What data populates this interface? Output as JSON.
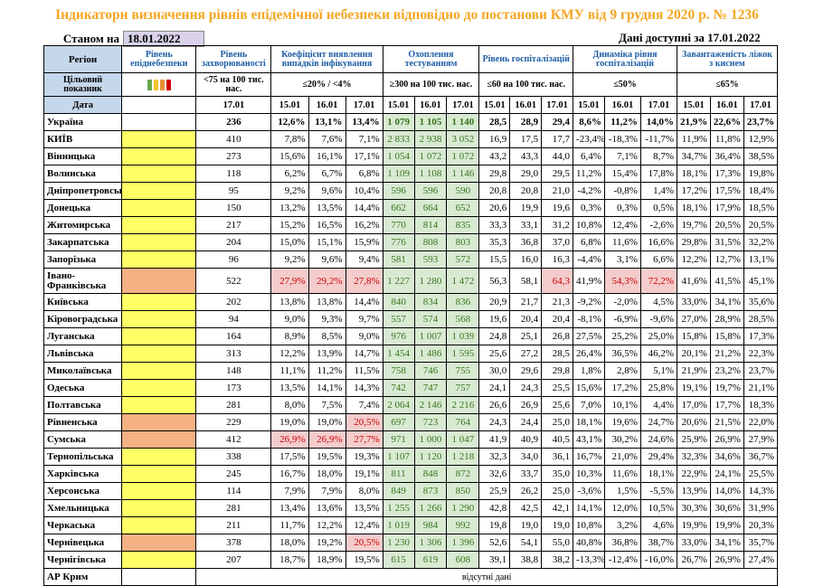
{
  "title": "Індикатори визначення рівнів епідемічної небезпеки відповідно до постанови КМУ від 9 грудня 2020 р. № 1236",
  "as_of_label": "Станом на",
  "as_of_date": "18.01.2022",
  "available": "Дані доступні за  17.01.2022",
  "headers": {
    "region": "Регіон",
    "level": "Рівень епіднебезпеки",
    "incidence": "Рівень захворюваності",
    "detection": "Коефіцієнт виявлення випадків інфікування",
    "testing": "Охоплення тестуванням",
    "hospital": "Рівень госпіталізацій",
    "dynamics": "Динаміка рівня госпіталізацій",
    "beds": "Завантаженість ліжок з киснем"
  },
  "target": {
    "label": "Цільовий показник",
    "incidence": "<75 на 100 тис. нас.",
    "detection": "≤20% / <4%",
    "testing": "≥300 на 100 тис. нас.",
    "hospital": "≤60 на 100 тис. нас.",
    "dynamics": "≤50%",
    "beds": "≤65%"
  },
  "date_label": "Дата",
  "dates": {
    "incidence": "17.01",
    "d1": "15.01",
    "d2": "16.01",
    "d3": "17.01"
  },
  "colors": {
    "yellow": "#ffff66",
    "orange": "#f4b183",
    "swatch_green": "#6aa84f",
    "swatch_yellow": "#f1c232",
    "swatch_orange": "#e69138",
    "swatch_red": "#cc0000"
  },
  "rows": [
    {
      "name": "Україна",
      "lvl": "",
      "inc": "236",
      "det": [
        "12,6%",
        "13,1%",
        "13,4%"
      ],
      "tst": [
        "1 079",
        "1 105",
        "1 140"
      ],
      "hosp": [
        "28,5",
        "28,9",
        "29,4"
      ],
      "dyn": [
        "8,6%",
        "11,2%",
        "14,0%"
      ],
      "bed": [
        "21,9%",
        "22,6%",
        "23,7%"
      ]
    },
    {
      "name": "КИЇВ",
      "lvl": "y",
      "inc": "410",
      "det": [
        "7,8%",
        "7,6%",
        "7,1%"
      ],
      "tst": [
        "2 833",
        "2 938",
        "3 052"
      ],
      "hosp": [
        "16,9",
        "17,5",
        "17,7"
      ],
      "dyn": [
        "-23,4%",
        "-18,3%",
        "-11,7%"
      ],
      "bed": [
        "11,9%",
        "11,8%",
        "12,9%"
      ]
    },
    {
      "name": "Вінницька",
      "lvl": "y",
      "inc": "273",
      "det": [
        "15,6%",
        "16,1%",
        "17,1%"
      ],
      "tst": [
        "1 054",
        "1 072",
        "1 072"
      ],
      "hosp": [
        "43,2",
        "43,3",
        "44,0"
      ],
      "dyn": [
        "6,4%",
        "7,1%",
        "8,7%"
      ],
      "bed": [
        "34,7%",
        "36,4%",
        "38,5%"
      ]
    },
    {
      "name": "Волинська",
      "lvl": "y",
      "inc": "118",
      "det": [
        "6,2%",
        "6,7%",
        "6,8%"
      ],
      "tst": [
        "1 109",
        "1 108",
        "1 146"
      ],
      "hosp": [
        "29,8",
        "29,0",
        "29,5"
      ],
      "dyn": [
        "11,2%",
        "15,4%",
        "17,8%"
      ],
      "bed": [
        "18,1%",
        "17,3%",
        "19,8%"
      ]
    },
    {
      "name": "Дніпропетровська",
      "lvl": "y",
      "inc": "95",
      "det": [
        "9,2%",
        "9,6%",
        "10,4%"
      ],
      "tst": [
        "596",
        "596",
        "590"
      ],
      "hosp": [
        "20,8",
        "20,8",
        "21,0"
      ],
      "dyn": [
        "-4,2%",
        "-0,8%",
        "1,4%"
      ],
      "bed": [
        "17,2%",
        "17,5%",
        "18,4%"
      ]
    },
    {
      "name": "Донецька",
      "lvl": "y",
      "inc": "150",
      "det": [
        "13,2%",
        "13,5%",
        "14,4%"
      ],
      "tst": [
        "662",
        "664",
        "652"
      ],
      "hosp": [
        "20,6",
        "19,9",
        "19,6"
      ],
      "dyn": [
        "0,3%",
        "0,3%",
        "0,5%"
      ],
      "bed": [
        "18,1%",
        "17,9%",
        "18,5%"
      ]
    },
    {
      "name": "Житомирська",
      "lvl": "y",
      "inc": "217",
      "det": [
        "15,2%",
        "16,5%",
        "16,2%"
      ],
      "tst": [
        "770",
        "814",
        "835"
      ],
      "hosp": [
        "33,3",
        "33,1",
        "31,2"
      ],
      "dyn": [
        "10,8%",
        "12,4%",
        "-2,6%"
      ],
      "bed": [
        "19,7%",
        "20,5%",
        "20,5%"
      ]
    },
    {
      "name": "Закарпатська",
      "lvl": "y",
      "inc": "204",
      "det": [
        "15,0%",
        "15,1%",
        "15,9%"
      ],
      "tst": [
        "776",
        "808",
        "803"
      ],
      "hosp": [
        "35,3",
        "36,8",
        "37,0"
      ],
      "dyn": [
        "6,8%",
        "11,6%",
        "16,6%"
      ],
      "bed": [
        "29,8%",
        "31,5%",
        "32,2%"
      ]
    },
    {
      "name": "Запорізька",
      "lvl": "y",
      "inc": "96",
      "det": [
        "9,2%",
        "9,6%",
        "9,4%"
      ],
      "tst": [
        "581",
        "593",
        "572"
      ],
      "hosp": [
        "15,5",
        "16,0",
        "16,3"
      ],
      "dyn": [
        "-4,4%",
        "3,1%",
        "6,6%"
      ],
      "bed": [
        "12,2%",
        "12,7%",
        "13,1%"
      ]
    },
    {
      "name": "Івано-Франківська",
      "lvl": "o",
      "inc": "522",
      "det": [
        "27,9%",
        "29,2%",
        "27,8%"
      ],
      "tst": [
        "1 227",
        "1 280",
        "1 472"
      ],
      "hosp": [
        "56,3",
        "58,1",
        "64,3"
      ],
      "dyn": [
        "41,9%",
        "54,3%",
        "72,2%"
      ],
      "bed": [
        "41,6%",
        "41,5%",
        "45,1%"
      ],
      "red_det": true,
      "red_hosp3": true,
      "red_dyn23": true
    },
    {
      "name": "Київська",
      "lvl": "y",
      "inc": "202",
      "det": [
        "13,8%",
        "13,8%",
        "14,4%"
      ],
      "tst": [
        "840",
        "834",
        "836"
      ],
      "hosp": [
        "20,9",
        "21,7",
        "21,3"
      ],
      "dyn": [
        "-9,2%",
        "-2,0%",
        "4,5%"
      ],
      "bed": [
        "33,0%",
        "34,1%",
        "35,6%"
      ]
    },
    {
      "name": "Кіровоградська",
      "lvl": "y",
      "inc": "94",
      "det": [
        "9,0%",
        "9,3%",
        "9,7%"
      ],
      "tst": [
        "557",
        "574",
        "568"
      ],
      "hosp": [
        "19,6",
        "20,4",
        "20,4"
      ],
      "dyn": [
        "-8,1%",
        "-6,9%",
        "-9,6%"
      ],
      "bed": [
        "27,0%",
        "28,9%",
        "28,5%"
      ]
    },
    {
      "name": "Луганська",
      "lvl": "y",
      "inc": "164",
      "det": [
        "8,9%",
        "8,5%",
        "9,0%"
      ],
      "tst": [
        "976",
        "1 007",
        "1 039"
      ],
      "hosp": [
        "24,8",
        "25,1",
        "26,8"
      ],
      "dyn": [
        "27,5%",
        "25,2%",
        "25,0%"
      ],
      "bed": [
        "15,8%",
        "15,8%",
        "17,3%"
      ]
    },
    {
      "name": "Львівська",
      "lvl": "y",
      "inc": "313",
      "det": [
        "12,2%",
        "13,9%",
        "14,7%"
      ],
      "tst": [
        "1 454",
        "1 486",
        "1 595"
      ],
      "hosp": [
        "25,6",
        "27,2",
        "28,5"
      ],
      "dyn": [
        "26,4%",
        "36,5%",
        "46,2%"
      ],
      "bed": [
        "20,1%",
        "21,2%",
        "22,3%"
      ]
    },
    {
      "name": "Миколаївська",
      "lvl": "y",
      "inc": "148",
      "det": [
        "11,1%",
        "11,2%",
        "11,5%"
      ],
      "tst": [
        "758",
        "746",
        "755"
      ],
      "hosp": [
        "30,0",
        "29,6",
        "29,8"
      ],
      "dyn": [
        "1,8%",
        "2,8%",
        "5,1%"
      ],
      "bed": [
        "21,9%",
        "23,2%",
        "23,7%"
      ]
    },
    {
      "name": "Одеська",
      "lvl": "y",
      "inc": "173",
      "det": [
        "13,5%",
        "14,1%",
        "14,3%"
      ],
      "tst": [
        "742",
        "747",
        "757"
      ],
      "hosp": [
        "24,1",
        "24,3",
        "25,5"
      ],
      "dyn": [
        "15,6%",
        "17,2%",
        "25,8%"
      ],
      "bed": [
        "19,1%",
        "19,7%",
        "21,1%"
      ]
    },
    {
      "name": "Полтавська",
      "lvl": "y",
      "inc": "281",
      "det": [
        "8,0%",
        "7,5%",
        "7,4%"
      ],
      "tst": [
        "2 064",
        "2 146",
        "2 216"
      ],
      "hosp": [
        "26,6",
        "26,9",
        "25,6"
      ],
      "dyn": [
        "7,0%",
        "10,1%",
        "4,4%"
      ],
      "bed": [
        "17,0%",
        "17,7%",
        "18,3%"
      ]
    },
    {
      "name": "Рівненська",
      "lvl": "o",
      "inc": "229",
      "det": [
        "19,0%",
        "19,0%",
        "20,5%"
      ],
      "tst": [
        "697",
        "723",
        "764"
      ],
      "hosp": [
        "24,3",
        "24,4",
        "25,0"
      ],
      "dyn": [
        "18,1%",
        "19,6%",
        "24,7%"
      ],
      "bed": [
        "20,6%",
        "21,5%",
        "22,0%"
      ],
      "red_det3": true
    },
    {
      "name": "Сумська",
      "lvl": "o",
      "inc": "412",
      "det": [
        "26,9%",
        "26,9%",
        "27,7%"
      ],
      "tst": [
        "971",
        "1 000",
        "1 047"
      ],
      "hosp": [
        "41,9",
        "40,9",
        "40,5"
      ],
      "dyn": [
        "43,1%",
        "30,2%",
        "24,6%"
      ],
      "bed": [
        "25,9%",
        "26,9%",
        "27,9%"
      ],
      "red_det": true
    },
    {
      "name": "Тернопільська",
      "lvl": "y",
      "inc": "338",
      "det": [
        "17,5%",
        "19,5%",
        "19,3%"
      ],
      "tst": [
        "1 107",
        "1 120",
        "1 218"
      ],
      "hosp": [
        "32,3",
        "34,0",
        "36,1"
      ],
      "dyn": [
        "16,7%",
        "21,0%",
        "29,4%"
      ],
      "bed": [
        "32,3%",
        "34,6%",
        "36,7%"
      ]
    },
    {
      "name": "Харківська",
      "lvl": "y",
      "inc": "245",
      "det": [
        "16,7%",
        "18,0%",
        "19,1%"
      ],
      "tst": [
        "811",
        "848",
        "872"
      ],
      "hosp": [
        "32,6",
        "33,7",
        "35,0"
      ],
      "dyn": [
        "10,3%",
        "11,6%",
        "18,1%"
      ],
      "bed": [
        "22,9%",
        "24,1%",
        "25,5%"
      ]
    },
    {
      "name": "Херсонська",
      "lvl": "y",
      "inc": "114",
      "det": [
        "7,9%",
        "7,9%",
        "8,0%"
      ],
      "tst": [
        "849",
        "873",
        "850"
      ],
      "hosp": [
        "25,9",
        "26,2",
        "25,0"
      ],
      "dyn": [
        "-3,6%",
        "1,5%",
        "-5,5%"
      ],
      "bed": [
        "13,9%",
        "14,0%",
        "14,3%"
      ]
    },
    {
      "name": "Хмельницька",
      "lvl": "y",
      "inc": "281",
      "det": [
        "13,4%",
        "13,6%",
        "13,5%"
      ],
      "tst": [
        "1 255",
        "1 266",
        "1 290"
      ],
      "hosp": [
        "42,8",
        "42,5",
        "42,1"
      ],
      "dyn": [
        "14,1%",
        "12,0%",
        "10,5%"
      ],
      "bed": [
        "30,3%",
        "30,6%",
        "31,9%"
      ]
    },
    {
      "name": "Черкаська",
      "lvl": "y",
      "inc": "211",
      "det": [
        "11,7%",
        "12,2%",
        "12,4%"
      ],
      "tst": [
        "1 019",
        "984",
        "992"
      ],
      "hosp": [
        "19,8",
        "19,0",
        "19,0"
      ],
      "dyn": [
        "10,8%",
        "3,2%",
        "4,6%"
      ],
      "bed": [
        "19,9%",
        "19,9%",
        "20,3%"
      ]
    },
    {
      "name": "Чернівецька",
      "lvl": "o",
      "inc": "378",
      "det": [
        "18,0%",
        "19,2%",
        "20,5%"
      ],
      "tst": [
        "1 230",
        "1 306",
        "1 396"
      ],
      "hosp": [
        "52,6",
        "54,1",
        "55,0"
      ],
      "dyn": [
        "40,8%",
        "36,8%",
        "38,7%"
      ],
      "bed": [
        "33,0%",
        "34,1%",
        "35,7%"
      ],
      "red_det3": true
    },
    {
      "name": "Чернігівська",
      "lvl": "y",
      "inc": "207",
      "det": [
        "18,7%",
        "18,9%",
        "19,5%"
      ],
      "tst": [
        "615",
        "619",
        "608"
      ],
      "hosp": [
        "39,1",
        "38,8",
        "38,2"
      ],
      "dyn": [
        "-13,3%",
        "-12,4%",
        "-16,0%"
      ],
      "bed": [
        "26,7%",
        "26,9%",
        "27,4%"
      ]
    }
  ],
  "last_row": {
    "name": "АР Крим",
    "note": "відсутні дані"
  }
}
